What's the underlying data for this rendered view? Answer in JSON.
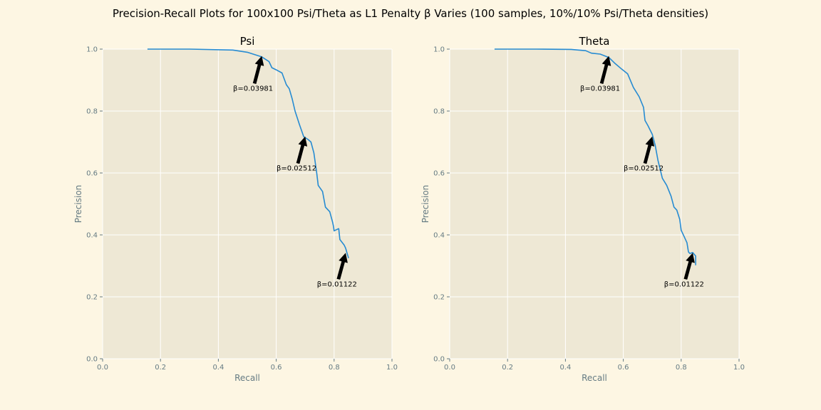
{
  "suptitle": "Precision-Recall Plots for 100x100 Psi/Theta as L1 Penalty β Varies (100 samples, 10%/10% Psi/Theta densities)",
  "colors": {
    "figure_bg": "#fdf6e3",
    "axes_bg": "#eee8d5",
    "grid": "#ffffff",
    "line": "#268bd2",
    "tick_text": "#657b83",
    "arrow": "#000000"
  },
  "chart_data": [
    {
      "type": "line",
      "title": "Psi",
      "xlabel": "Recall",
      "ylabel": "Precision",
      "xlim": [
        0.0,
        1.0
      ],
      "ylim": [
        0.0,
        1.0
      ],
      "xticks": [
        "0.0",
        "0.2",
        "0.4",
        "0.6",
        "0.8",
        "1.0"
      ],
      "yticks": [
        "0.0",
        "0.2",
        "0.4",
        "0.6",
        "0.8",
        "1.0"
      ],
      "grid": true,
      "series": [
        {
          "name": "Psi",
          "x": [
            0.155,
            0.3,
            0.45,
            0.5,
            0.55,
            0.575,
            0.585,
            0.6,
            0.62,
            0.635,
            0.645,
            0.655,
            0.665,
            0.68,
            0.695,
            0.71,
            0.72,
            0.73,
            0.74,
            0.745,
            0.76,
            0.77,
            0.785,
            0.795,
            0.798,
            0.8,
            0.815,
            0.816,
            0.82,
            0.835,
            0.84,
            0.845,
            0.85
          ],
          "y": [
            1.0,
            1.0,
            0.997,
            0.99,
            0.975,
            0.96,
            0.94,
            0.933,
            0.923,
            0.885,
            0.872,
            0.84,
            0.8,
            0.757,
            0.717,
            0.708,
            0.7,
            0.665,
            0.6,
            0.56,
            0.54,
            0.49,
            0.475,
            0.44,
            0.427,
            0.413,
            0.42,
            0.42,
            0.385,
            0.367,
            0.357,
            0.34,
            0.325
          ]
        }
      ],
      "annotations": [
        {
          "text": "β=0.03981",
          "xy": [
            0.55,
            0.978
          ],
          "xytext": [
            0.52,
            0.875
          ]
        },
        {
          "text": "β=0.02512",
          "xy": [
            0.7,
            0.718
          ],
          "xytext": [
            0.67,
            0.617
          ]
        },
        {
          "text": "β=0.01122",
          "xy": [
            0.84,
            0.342
          ],
          "xytext": [
            0.81,
            0.243
          ]
        }
      ]
    },
    {
      "type": "line",
      "title": "Theta",
      "xlabel": "Recall",
      "ylabel": "Precision",
      "xlim": [
        0.0,
        1.0
      ],
      "ylim": [
        0.0,
        1.0
      ],
      "xticks": [
        "0.0",
        "0.2",
        "0.4",
        "0.6",
        "0.8",
        "1.0"
      ],
      "yticks": [
        "0.0",
        "0.2",
        "0.4",
        "0.6",
        "0.8",
        "1.0"
      ],
      "grid": true,
      "series": [
        {
          "name": "Theta",
          "x": [
            0.155,
            0.3,
            0.42,
            0.47,
            0.49,
            0.52,
            0.55,
            0.57,
            0.595,
            0.615,
            0.635,
            0.655,
            0.67,
            0.675,
            0.685,
            0.7,
            0.71,
            0.72,
            0.735,
            0.75,
            0.765,
            0.775,
            0.785,
            0.795,
            0.8,
            0.81,
            0.82,
            0.825,
            0.83,
            0.84,
            0.85,
            0.85
          ],
          "y": [
            1.0,
            1.0,
            0.999,
            0.995,
            0.987,
            0.984,
            0.973,
            0.955,
            0.935,
            0.92,
            0.876,
            0.846,
            0.812,
            0.77,
            0.753,
            0.725,
            0.69,
            0.64,
            0.583,
            0.56,
            0.525,
            0.49,
            0.48,
            0.45,
            0.415,
            0.395,
            0.375,
            0.345,
            0.34,
            0.343,
            0.332,
            0.302
          ]
        }
      ],
      "annotations": [
        {
          "text": "β=0.03981",
          "xy": [
            0.55,
            0.978
          ],
          "xytext": [
            0.52,
            0.875
          ]
        },
        {
          "text": "β=0.02512",
          "xy": [
            0.7,
            0.718
          ],
          "xytext": [
            0.67,
            0.617
          ]
        },
        {
          "text": "β=0.01122",
          "xy": [
            0.84,
            0.342
          ],
          "xytext": [
            0.81,
            0.243
          ]
        }
      ]
    }
  ]
}
